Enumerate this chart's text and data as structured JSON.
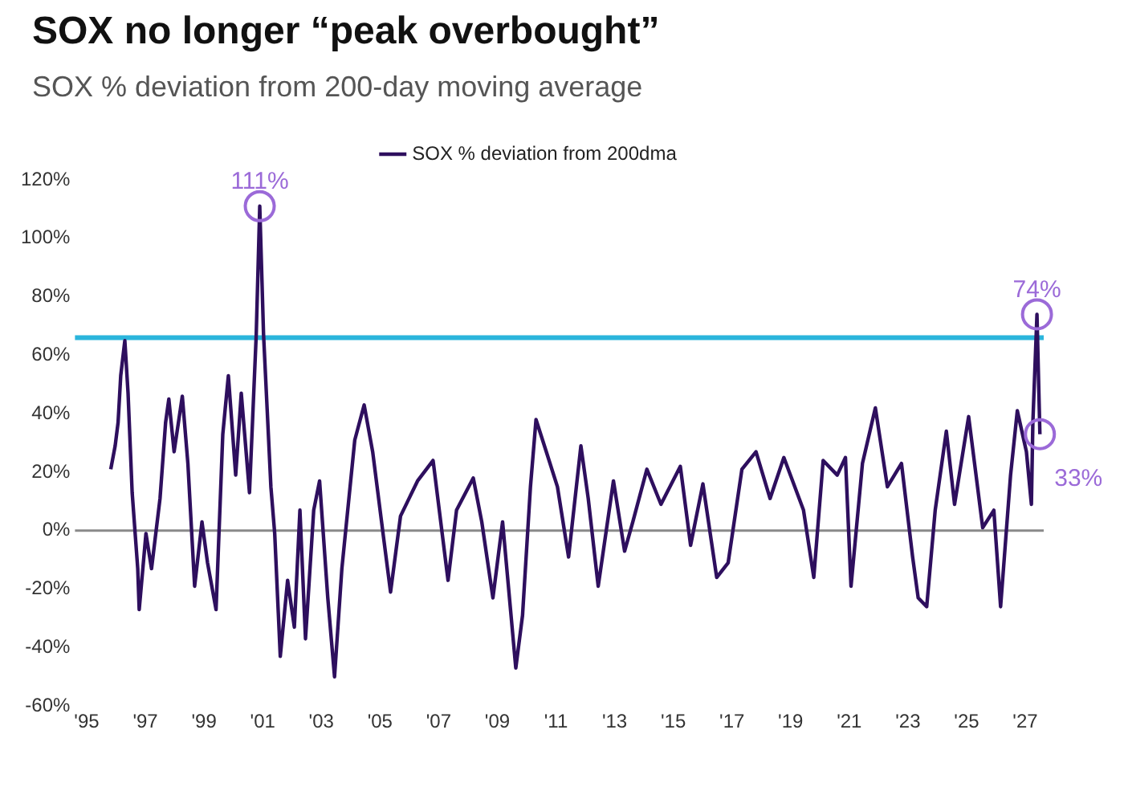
{
  "chart_data": {
    "type": "line",
    "title": "SOX no longer “peak overbought”",
    "subtitle": "SOX % deviation from 200-day moving average",
    "x": [
      1995.82,
      1995.97,
      1996.07,
      1996.16,
      1996.3,
      1996.41,
      1996.55,
      1996.74,
      1996.79,
      1997.02,
      1997.21,
      1997.5,
      1997.69,
      1997.8,
      1997.98,
      1998.26,
      1998.45,
      1998.68,
      1998.93,
      1999.12,
      1999.41,
      1999.64,
      1999.83,
      2000.08,
      2000.27,
      2000.55,
      2000.78,
      2000.9,
      2001.03,
      2001.28,
      2001.41,
      2001.6,
      2001.85,
      2002.08,
      2002.27,
      2002.46,
      2002.74,
      2002.94,
      2003.22,
      2003.45,
      2003.7,
      2004.14,
      2004.46,
      2004.75,
      2005.13,
      2005.36,
      2005.7,
      2006.28,
      2006.81,
      2007.32,
      2007.61,
      2008.18,
      2008.47,
      2008.85,
      2009.18,
      2009.63,
      2009.86,
      2010.13,
      2010.32,
      2010.67,
      2011.05,
      2011.43,
      2011.85,
      2012.1,
      2012.44,
      2012.96,
      2013.34,
      2013.62,
      2014.1,
      2014.58,
      2015.24,
      2015.59,
      2016.01,
      2016.48,
      2016.87,
      2017.34,
      2017.82,
      2018.3,
      2018.77,
      2019.44,
      2019.79,
      2020.11,
      2020.59,
      2020.87,
      2021.06,
      2021.45,
      2021.89,
      2022.3,
      2022.78,
      2023.16,
      2023.35,
      2023.64,
      2023.93,
      2024.31,
      2024.59,
      2025.07,
      2025.55,
      2025.93,
      2026.16,
      2026.5,
      2026.73,
      2027.04,
      2027.21,
      2027.26,
      2027.4,
      2027.5
    ],
    "series": [
      {
        "name": "SOX % deviation from 200dma",
        "color": "#2e0f5e",
        "values": [
          21,
          29,
          37,
          53,
          65,
          47,
          13,
          -13,
          -27,
          -1,
          -13,
          11,
          37,
          45,
          27,
          46,
          23,
          -19,
          3,
          -11,
          -27,
          33,
          53,
          19,
          47,
          13,
          67,
          111,
          67,
          15,
          -1,
          -43,
          -17,
          -33,
          7,
          -37,
          7,
          17,
          -23,
          -50,
          -13,
          31,
          43,
          27,
          -3,
          -21,
          5,
          17,
          24,
          -17,
          7,
          18,
          3,
          -23,
          3,
          -47,
          -29,
          15,
          38,
          27,
          15,
          -9,
          29,
          11,
          -19,
          17,
          -7,
          3,
          21,
          9,
          22,
          -5,
          16,
          -16,
          -11,
          21,
          27,
          11,
          25,
          7,
          -16,
          24,
          19,
          25,
          -19,
          23,
          42,
          15,
          23,
          -9,
          -23,
          -26,
          7,
          34,
          9,
          39,
          1,
          7,
          -26,
          19,
          41,
          27,
          9,
          37,
          74,
          33
        ]
      }
    ],
    "xlim": [
      1994.6,
      2027.63
    ],
    "ylim": [
      -60,
      120
    ],
    "xticks": [
      {
        "value": 1995,
        "label": "'95"
      },
      {
        "value": 1997,
        "label": "'97"
      },
      {
        "value": 1999,
        "label": "'99"
      },
      {
        "value": 2001,
        "label": "'01"
      },
      {
        "value": 2003,
        "label": "'03"
      },
      {
        "value": 2005,
        "label": "'05"
      },
      {
        "value": 2007,
        "label": "'07"
      },
      {
        "value": 2009,
        "label": "'09"
      },
      {
        "value": 2011,
        "label": "'11"
      },
      {
        "value": 2013,
        "label": "'13"
      },
      {
        "value": 2015,
        "label": "'15"
      },
      {
        "value": 2017,
        "label": "'17"
      },
      {
        "value": 2019,
        "label": "'19"
      },
      {
        "value": 2021,
        "label": "'21"
      },
      {
        "value": 2023,
        "label": "'23"
      },
      {
        "value": 2025,
        "label": "'25"
      },
      {
        "value": 2027,
        "label": "'27"
      }
    ],
    "yticks": [
      {
        "value": -60,
        "label": "-60%"
      },
      {
        "value": -40,
        "label": "-40%"
      },
      {
        "value": -20,
        "label": "-20%"
      },
      {
        "value": 0,
        "label": "0%"
      },
      {
        "value": 20,
        "label": "20%"
      },
      {
        "value": 40,
        "label": "40%"
      },
      {
        "value": 60,
        "label": "60%"
      },
      {
        "value": 80,
        "label": "80%"
      },
      {
        "value": 100,
        "label": "100%"
      },
      {
        "value": 120,
        "label": "120%"
      }
    ],
    "ref_lines": [
      {
        "axis": "y",
        "value": 66,
        "color": "#2bb5dc"
      },
      {
        "axis": "y",
        "value": 0,
        "color": "#8a8a8a"
      }
    ],
    "annotations": [
      {
        "text": "111%",
        "x": 2000.9,
        "y": 111
      },
      {
        "text": "74%",
        "x": 2027.4,
        "y": 74
      },
      {
        "text": "33%",
        "x": 2027.5,
        "y": 33
      }
    ],
    "grid": false,
    "legend": "top",
    "marker": "none",
    "line_style": "solid"
  }
}
